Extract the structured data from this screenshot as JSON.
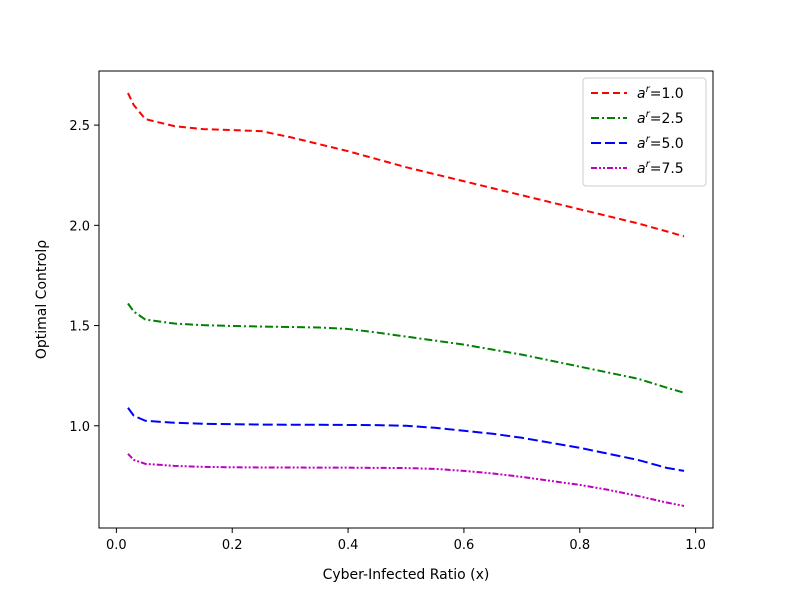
{
  "chart_data": {
    "type": "line",
    "title": "",
    "xlabel": "Cyber-Infected Ratio (x)",
    "ylabel": "Optimal Controlρ",
    "xlim": [
      -0.03,
      1.03
    ],
    "ylim": [
      0.49,
      2.77
    ],
    "xticks": [
      "0.0",
      "0.2",
      "0.4",
      "0.6",
      "0.8",
      "1.0"
    ],
    "xtick_values": [
      0.0,
      0.2,
      0.4,
      0.6,
      0.8,
      1.0
    ],
    "yticks": [
      "1.0",
      "1.5",
      "2.0",
      "2.5"
    ],
    "ytick_values": [
      1.0,
      1.5,
      2.0,
      2.5
    ],
    "grid": false,
    "legend_position": "top-right",
    "x": [
      0.02,
      0.03,
      0.05,
      0.1,
      0.15,
      0.2,
      0.25,
      0.3,
      0.35,
      0.4,
      0.45,
      0.5,
      0.55,
      0.6,
      0.65,
      0.7,
      0.75,
      0.8,
      0.85,
      0.9,
      0.95,
      0.98
    ],
    "series": [
      {
        "name_prefix": "a",
        "name_sup": "r",
        "name_suffix": "=1.0",
        "color": "#ff0000",
        "dash": "7,4",
        "values": [
          2.66,
          2.6,
          2.53,
          2.495,
          2.48,
          2.475,
          2.47,
          2.44,
          2.405,
          2.37,
          2.33,
          2.29,
          2.255,
          2.22,
          2.185,
          2.15,
          2.115,
          2.08,
          2.045,
          2.01,
          1.97,
          1.945
        ]
      },
      {
        "name_prefix": "a",
        "name_sup": "r",
        "name_suffix": "=2.5",
        "color": "#008000",
        "dash": "8,3,2,3",
        "values": [
          1.61,
          1.57,
          1.53,
          1.51,
          1.502,
          1.498,
          1.495,
          1.493,
          1.49,
          1.483,
          1.465,
          1.445,
          1.425,
          1.405,
          1.38,
          1.355,
          1.325,
          1.295,
          1.265,
          1.235,
          1.19,
          1.165
        ]
      },
      {
        "name_prefix": "a",
        "name_sup": "r",
        "name_suffix": "=5.0",
        "color": "#0000ff",
        "dash": "10,4",
        "values": [
          1.09,
          1.05,
          1.025,
          1.015,
          1.01,
          1.008,
          1.006,
          1.005,
          1.005,
          1.004,
          1.003,
          1.0,
          0.99,
          0.975,
          0.96,
          0.94,
          0.915,
          0.89,
          0.86,
          0.83,
          0.79,
          0.775
        ]
      },
      {
        "name_prefix": "a",
        "name_sup": "r",
        "name_suffix": "=7.5",
        "color": "#bf00bf",
        "dash": "6,2,2,2,2,2",
        "values": [
          0.86,
          0.83,
          0.81,
          0.8,
          0.795,
          0.793,
          0.792,
          0.792,
          0.791,
          0.791,
          0.79,
          0.789,
          0.785,
          0.775,
          0.762,
          0.745,
          0.725,
          0.705,
          0.68,
          0.65,
          0.617,
          0.6
        ]
      }
    ]
  }
}
